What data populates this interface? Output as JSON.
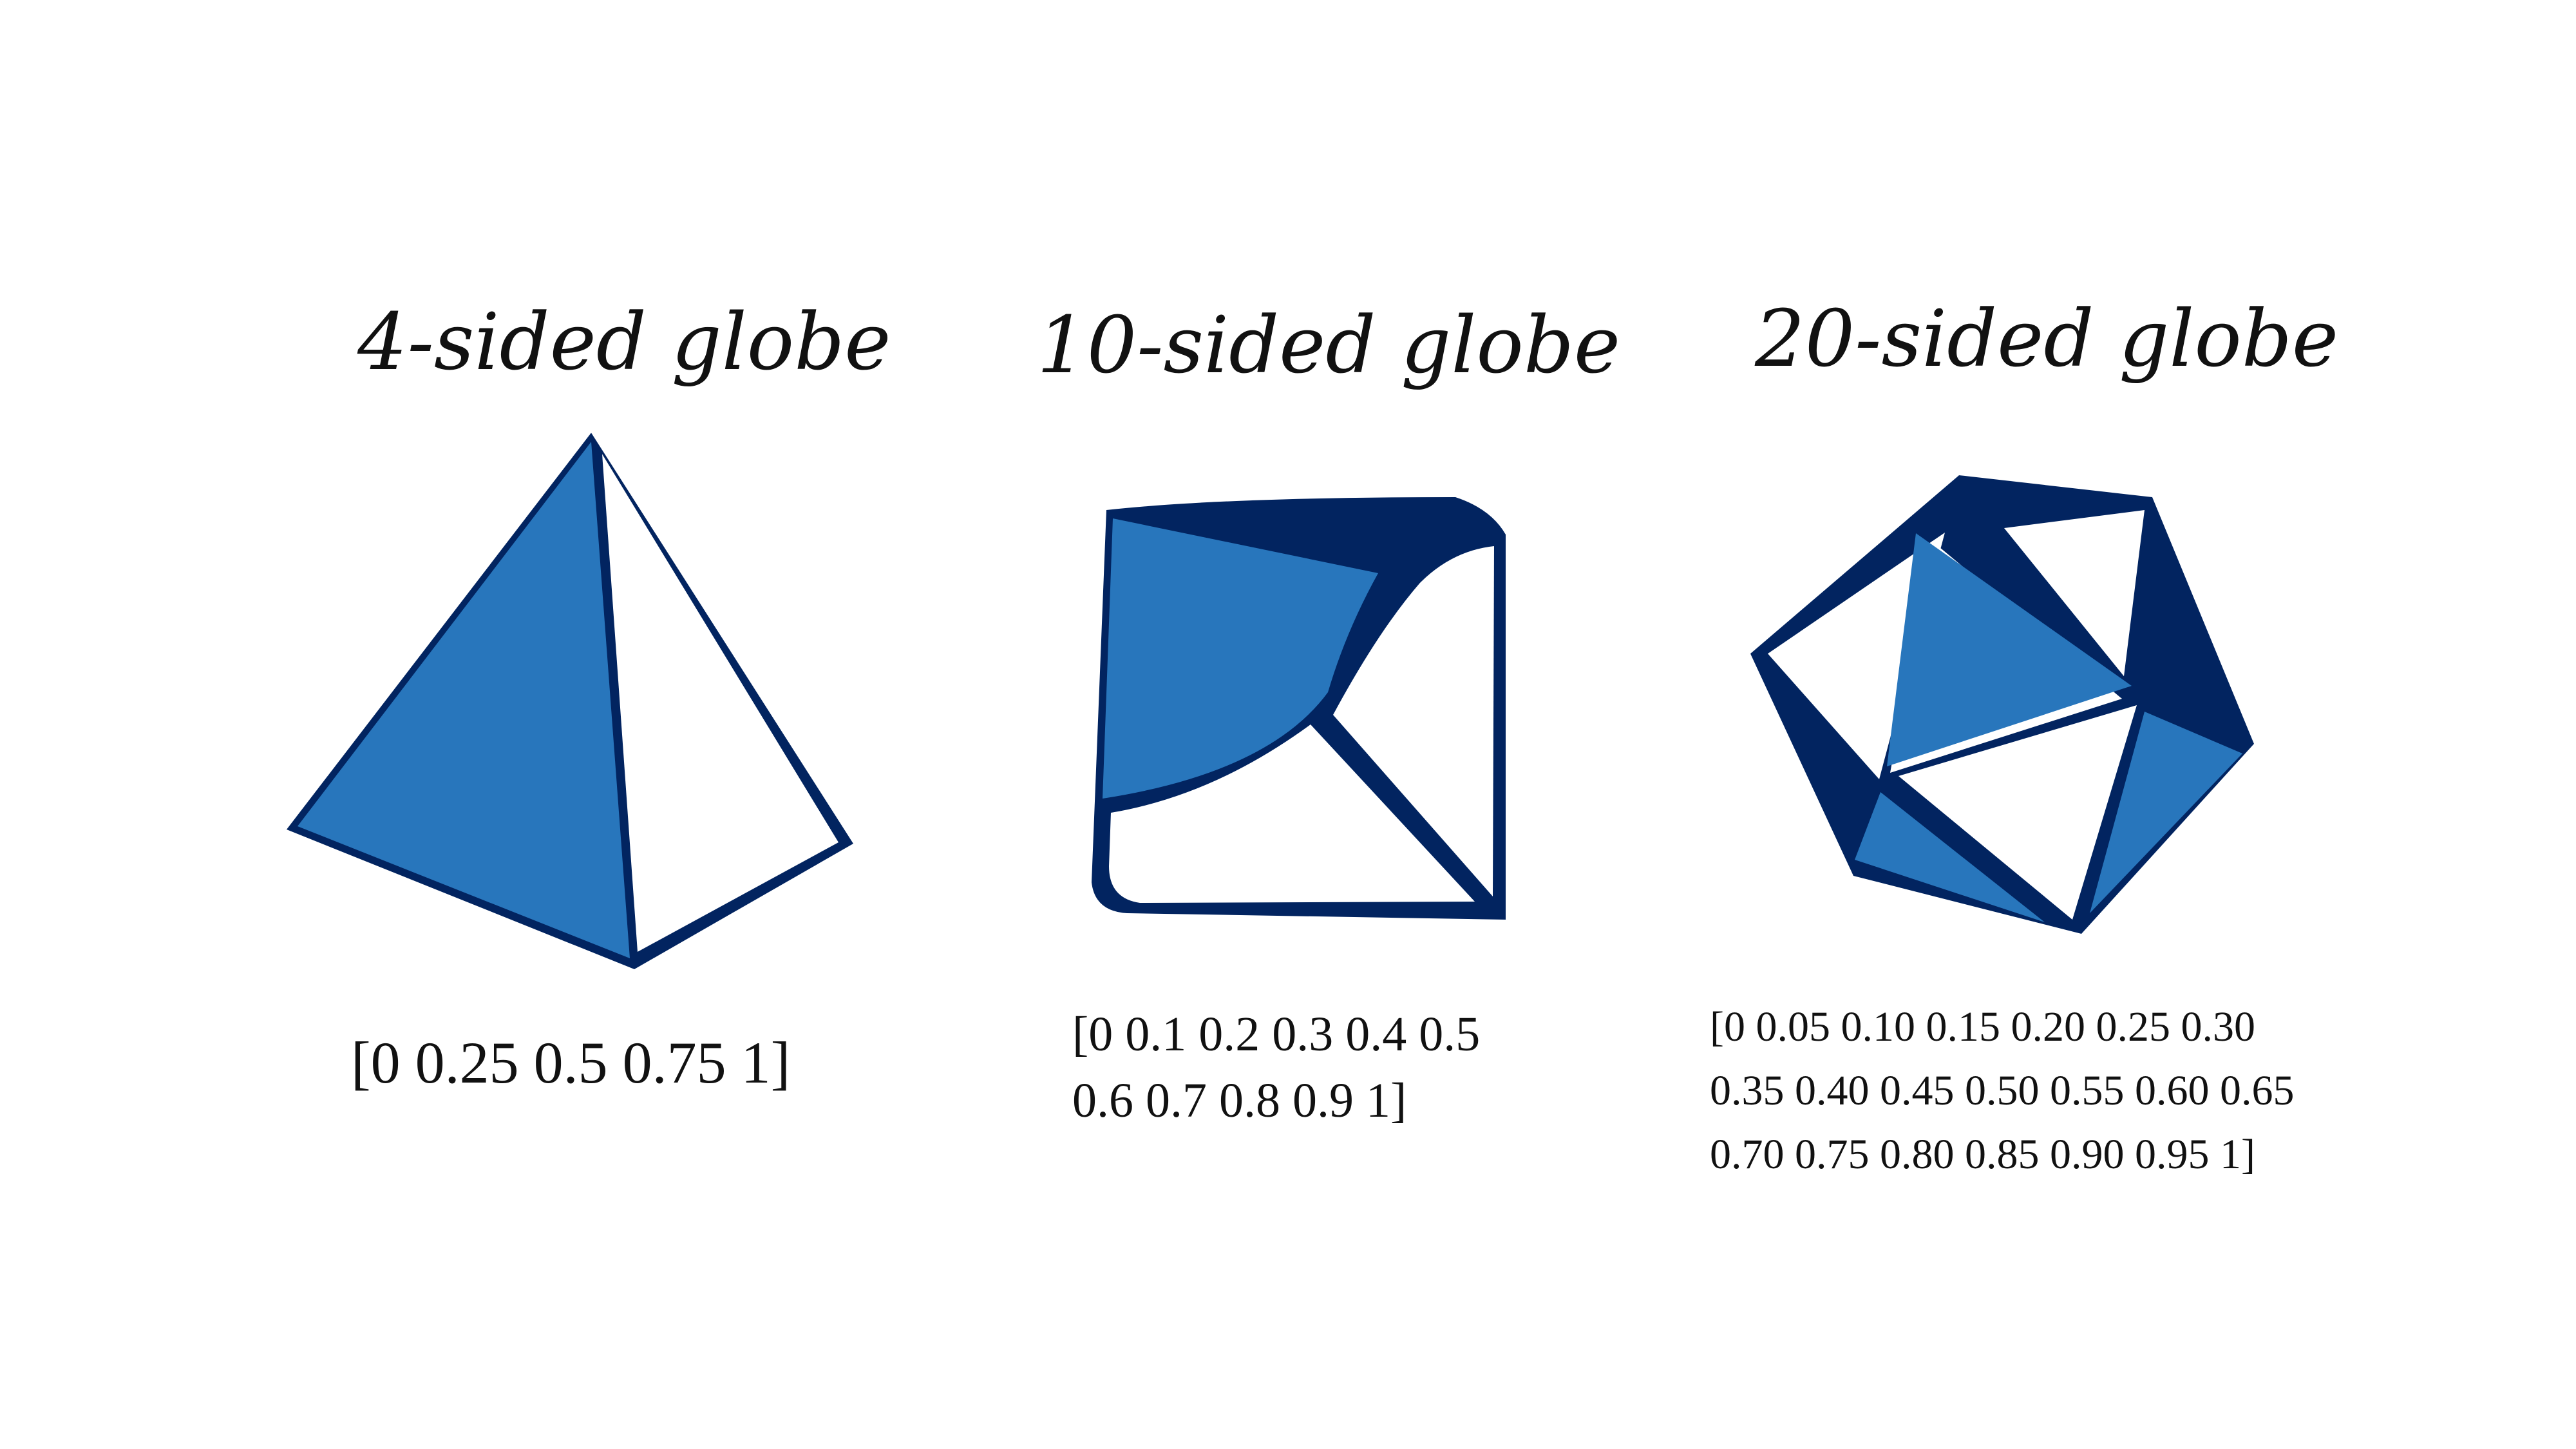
{
  "colors": {
    "face_blue": "#2876BC",
    "edge_navy": "#022460",
    "face_white": "#FFFFFF",
    "text": "#111111"
  },
  "panels": [
    {
      "title": "4-sided globe",
      "values_lines": [
        "[0 0.25 0.5 0.75 1]"
      ]
    },
    {
      "title": "10-sided globe",
      "values_lines": [
        "[0 0.1 0.2 0.3 0.4 0.5",
        "0.6 0.7 0.8 0.9 1]"
      ]
    },
    {
      "title": "20-sided globe",
      "values_lines": [
        "[0 0.05 0.10 0.15 0.20 0.25 0.30",
        "0.35 0.40 0.45 0.50 0.55 0.60 0.65",
        "0.70 0.75 0.80 0.85 0.90 0.95 1]"
      ]
    }
  ]
}
